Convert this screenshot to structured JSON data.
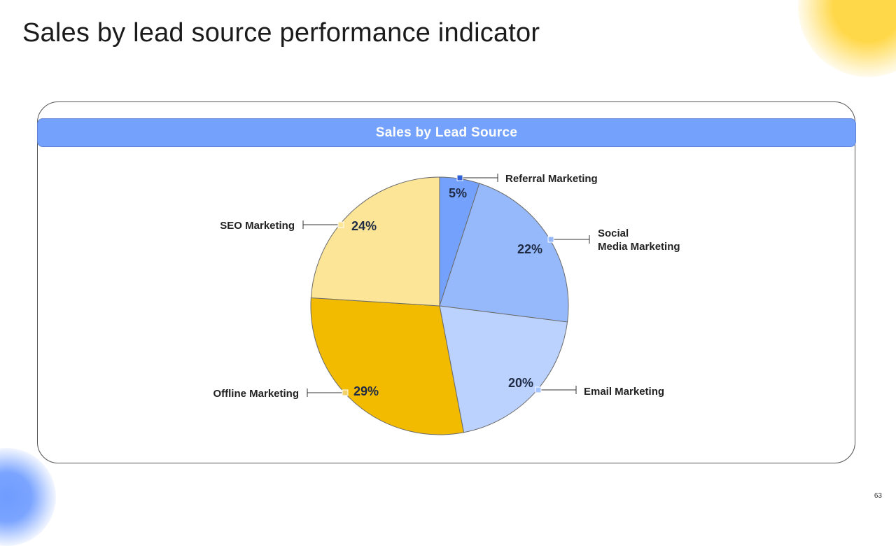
{
  "slide": {
    "title": "Sales by lead source performance indicator",
    "panel_title": "Sales by Lead Source",
    "page_number": "63"
  },
  "colors": {
    "header_bg": "#74a1fb",
    "accent_yellow": "#ffd84a",
    "accent_blue": "#7aa4ff"
  },
  "chart_data": {
    "type": "pie",
    "title": "Sales by Lead Source",
    "unit": "%",
    "slices": [
      {
        "label": "Referral Marketing",
        "value": 5,
        "color": "#74a1fb",
        "marker_color": "#2f5fd6"
      },
      {
        "label": "Social Media Marketing",
        "label_lines": [
          "Social",
          "Media Marketing"
        ],
        "value": 22,
        "color": "#96b9fb",
        "marker_color": "#96b9fb"
      },
      {
        "label": "Email Marketing",
        "value": 20,
        "color": "#bad2fd",
        "marker_color": "#a7c4fc"
      },
      {
        "label": "Offline Marketing",
        "value": 29,
        "color": "#f2bb00",
        "marker_color": "#f2d36a"
      },
      {
        "label": "SEO Marketing",
        "value": 24,
        "color": "#fde597",
        "marker_color": "#fde597"
      }
    ]
  }
}
